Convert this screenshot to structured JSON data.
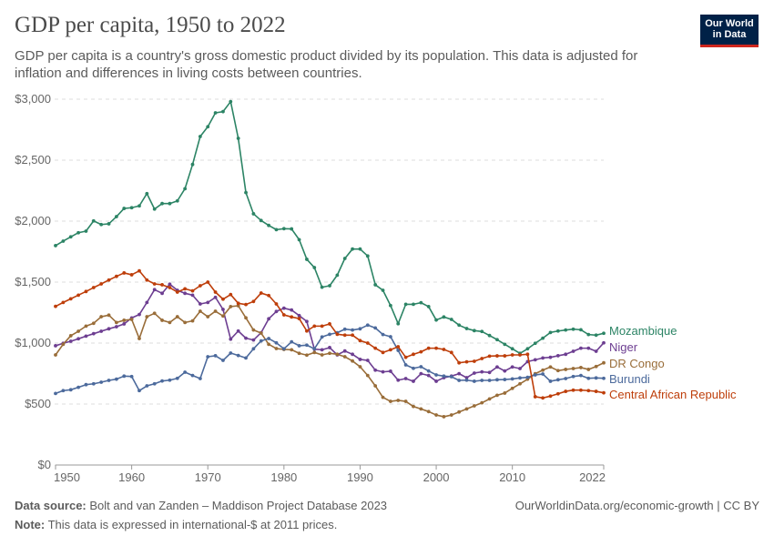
{
  "header": {
    "title": "GDP per capita, 1950 to 2022",
    "subtitle": "GDP per capita is a country's gross domestic product divided by its population. This data is adjusted for inflation and differences in living costs between countries.",
    "logo_line1": "Our World",
    "logo_line2": "in Data"
  },
  "footer": {
    "source_label": "Data source:",
    "source_text": "Bolt and van Zanden – Maddison Project Database 2023",
    "note_label": "Note:",
    "note_text": "This data is expressed in international-$ at 2011 prices.",
    "link": "OurWorldinData.org/economic-growth | CC BY"
  },
  "chart_data": {
    "type": "line",
    "title": "GDP per capita, 1950 to 2022",
    "xlabel": "",
    "ylabel": "",
    "xlim": [
      1950,
      2022
    ],
    "ylim": [
      0,
      3000
    ],
    "grid": "horizontal dashed",
    "legend": "right (end-of-line labels)",
    "y_ticks": [
      "$0",
      "$500",
      "$1,000",
      "$1,500",
      "$2,000",
      "$2,500",
      "$3,000"
    ],
    "y_tick_values": [
      0,
      500,
      1000,
      1500,
      2000,
      2500,
      3000
    ],
    "x_ticks": [
      "1950",
      "1960",
      "1970",
      "1980",
      "1990",
      "2000",
      "2010",
      "2022"
    ],
    "x_tick_values": [
      1950,
      1960,
      1970,
      1980,
      1990,
      2000,
      2010,
      2022
    ],
    "x_start": 1950,
    "series": [
      {
        "name": "Mozambique",
        "color": "#2c8465",
        "values": [
          1799,
          1836,
          1871,
          1905,
          1918,
          2002,
          1972,
          1978,
          2037,
          2104,
          2110,
          2125,
          2226,
          2099,
          2144,
          2144,
          2166,
          2266,
          2465,
          2694,
          2774,
          2888,
          2898,
          2980,
          2679,
          2234,
          2060,
          2005,
          1965,
          1930,
          1938,
          1936,
          1848,
          1687,
          1619,
          1458,
          1470,
          1557,
          1694,
          1771,
          1771,
          1714,
          1478,
          1433,
          1308,
          1159,
          1318,
          1318,
          1331,
          1299,
          1189,
          1214,
          1194,
          1147,
          1119,
          1102,
          1095,
          1062,
          1028,
          990,
          953,
          916,
          953,
          998,
          1040,
          1087,
          1099,
          1107,
          1114,
          1109,
          1070,
          1065,
          1080
        ]
      },
      {
        "name": "Niger",
        "color": "#6d3e91",
        "values": [
          978,
          998,
          1015,
          1035,
          1057,
          1077,
          1097,
          1117,
          1134,
          1157,
          1206,
          1234,
          1333,
          1438,
          1408,
          1483,
          1433,
          1408,
          1393,
          1321,
          1333,
          1375,
          1276,
          1032,
          1099,
          1040,
          1025,
          1085,
          1199,
          1259,
          1286,
          1271,
          1226,
          1177,
          950,
          945,
          963,
          903,
          935,
          908,
          866,
          858,
          778,
          764,
          769,
          696,
          709,
          687,
          749,
          734,
          687,
          716,
          729,
          749,
          716,
          754,
          764,
          759,
          804,
          771,
          804,
          791,
          848,
          863,
          878,
          883,
          896,
          908,
          933,
          958,
          958,
          933,
          1002
        ]
      },
      {
        "name": "DR Congo",
        "color": "#996d39",
        "values": [
          903,
          990,
          1060,
          1097,
          1139,
          1162,
          1216,
          1229,
          1169,
          1187,
          1194,
          1037,
          1216,
          1244,
          1187,
          1169,
          1216,
          1169,
          1182,
          1261,
          1216,
          1261,
          1222,
          1299,
          1306,
          1207,
          1107,
          1082,
          990,
          955,
          948,
          945,
          916,
          901,
          923,
          903,
          916,
          908,
          888,
          853,
          806,
          734,
          649,
          555,
          522,
          530,
          522,
          480,
          460,
          438,
          410,
          396,
          410,
          435,
          460,
          485,
          510,
          542,
          572,
          590,
          629,
          666,
          704,
          749,
          778,
          804,
          774,
          784,
          791,
          799,
          784,
          808,
          838
        ]
      },
      {
        "name": "Burundi",
        "color": "#4c6a9c",
        "values": [
          587,
          610,
          617,
          637,
          659,
          666,
          679,
          694,
          704,
          729,
          726,
          610,
          649,
          666,
          689,
          696,
          711,
          761,
          734,
          709,
          888,
          896,
          858,
          918,
          898,
          878,
          953,
          1018,
          1037,
          1002,
          953,
          1010,
          978,
          983,
          953,
          1050,
          1072,
          1085,
          1114,
          1107,
          1117,
          1147,
          1124,
          1070,
          1052,
          940,
          821,
          793,
          806,
          771,
          739,
          729,
          724,
          694,
          696,
          687,
          694,
          694,
          699,
          701,
          706,
          714,
          719,
          739,
          746,
          687,
          699,
          709,
          726,
          734,
          711,
          714,
          711
        ]
      },
      {
        "name": "Central African Republic",
        "color": "#be3e0a",
        "values": [
          1301,
          1333,
          1363,
          1393,
          1423,
          1455,
          1485,
          1517,
          1547,
          1575,
          1560,
          1592,
          1517,
          1485,
          1478,
          1455,
          1418,
          1445,
          1428,
          1470,
          1500,
          1418,
          1360,
          1398,
          1326,
          1316,
          1341,
          1410,
          1390,
          1321,
          1231,
          1214,
          1201,
          1099,
          1139,
          1139,
          1157,
          1072,
          1065,
          1065,
          1020,
          1000,
          958,
          923,
          945,
          970,
          883,
          908,
          928,
          958,
          958,
          948,
          923,
          838,
          846,
          851,
          873,
          893,
          895,
          895,
          903,
          903,
          908,
          560,
          550,
          565,
          584,
          604,
          614,
          614,
          610,
          604,
          592
        ]
      }
    ]
  }
}
